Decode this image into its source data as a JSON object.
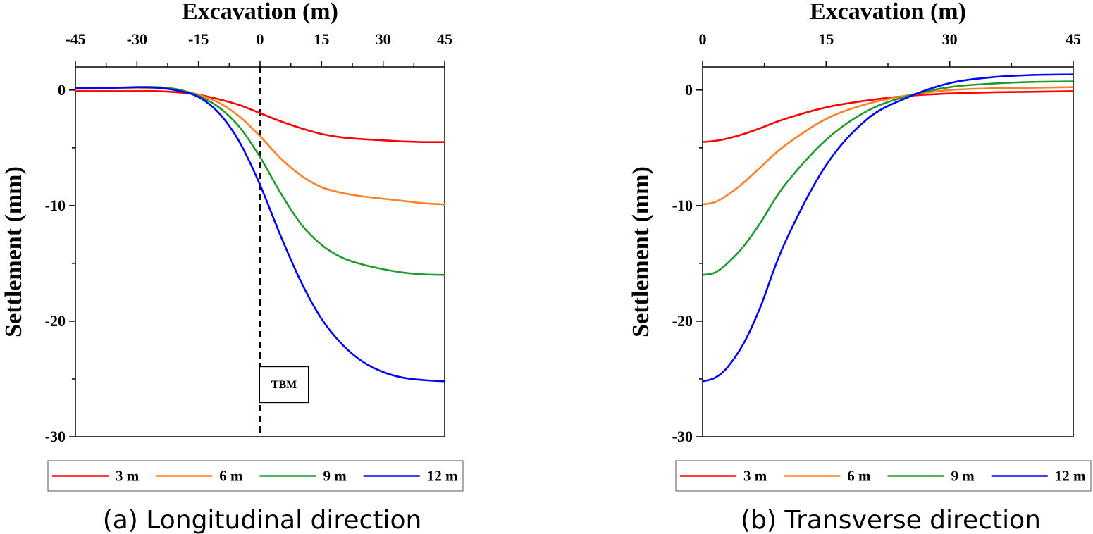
{
  "chart_data": [
    {
      "type": "line",
      "caption": "(a) Longitudinal direction",
      "xlabel": "Excavation (m)",
      "ylabel": "Settlement (mm)",
      "xlim": [
        -45,
        45
      ],
      "ylim": [
        -30,
        2
      ],
      "xticks": [
        -45,
        -30,
        -15,
        0,
        15,
        30,
        45
      ],
      "yticks": [
        0,
        -10,
        -20,
        -30
      ],
      "x_axis_position": "top",
      "grid": false,
      "legend_position": "bottom",
      "annotation": {
        "text": "TBM",
        "x": 0,
        "y": -25.5
      },
      "vline_x": 0,
      "series": [
        {
          "name": "3 m",
          "color": "#ff0000",
          "x": [
            -45,
            -35,
            -30,
            -25,
            -20,
            -15,
            -10,
            -5,
            0,
            5,
            10,
            15,
            20,
            25,
            30,
            35,
            40,
            45
          ],
          "y": [
            -0.1,
            -0.1,
            -0.1,
            -0.1,
            -0.2,
            -0.4,
            -0.8,
            -1.3,
            -2.0,
            -2.7,
            -3.3,
            -3.8,
            -4.1,
            -4.25,
            -4.35,
            -4.45,
            -4.5,
            -4.5
          ]
        },
        {
          "name": "6 m",
          "color": "#ff7f27",
          "x": [
            -45,
            -35,
            -30,
            -25,
            -20,
            -15,
            -10,
            -5,
            0,
            5,
            10,
            15,
            20,
            25,
            30,
            35,
            40,
            45
          ],
          "y": [
            0.1,
            0.15,
            0.2,
            0.15,
            0.0,
            -0.4,
            -1.1,
            -2.3,
            -4.0,
            -5.9,
            -7.4,
            -8.4,
            -8.9,
            -9.2,
            -9.4,
            -9.6,
            -9.8,
            -9.9
          ]
        },
        {
          "name": "9 m",
          "color": "#1e9a2e",
          "x": [
            -45,
            -35,
            -30,
            -25,
            -20,
            -15,
            -10,
            -5,
            0,
            5,
            10,
            15,
            20,
            25,
            30,
            35,
            40,
            45
          ],
          "y": [
            0.15,
            0.2,
            0.25,
            0.25,
            0.05,
            -0.5,
            -1.5,
            -3.2,
            -5.8,
            -8.9,
            -11.6,
            -13.4,
            -14.5,
            -15.1,
            -15.5,
            -15.8,
            -15.95,
            -16.0
          ]
        },
        {
          "name": "12 m",
          "color": "#0000ff",
          "x": [
            -45,
            -35,
            -30,
            -25,
            -20,
            -15,
            -10,
            -5,
            0,
            5,
            10,
            15,
            20,
            25,
            30,
            35,
            40,
            45
          ],
          "y": [
            0.15,
            0.2,
            0.25,
            0.2,
            -0.05,
            -0.6,
            -2.0,
            -4.5,
            -8.2,
            -12.6,
            -16.6,
            -19.8,
            -22.0,
            -23.5,
            -24.4,
            -24.9,
            -25.1,
            -25.2
          ]
        }
      ]
    },
    {
      "type": "line",
      "caption": "(b) Transverse direction",
      "xlabel": "Excavation (m)",
      "ylabel": "Settlement (mm)",
      "xlim": [
        0,
        45
      ],
      "ylim": [
        -30,
        2
      ],
      "xticks": [
        0,
        15,
        30,
        45
      ],
      "yticks": [
        0,
        -10,
        -20,
        -30
      ],
      "x_axis_position": "top",
      "grid": false,
      "legend_position": "bottom",
      "series": [
        {
          "name": "3 m",
          "color": "#ff0000",
          "x": [
            0,
            1.5,
            3,
            5,
            7,
            10,
            15,
            20,
            25,
            30,
            35,
            40,
            45
          ],
          "y": [
            -4.5,
            -4.4,
            -4.2,
            -3.8,
            -3.3,
            -2.5,
            -1.5,
            -0.9,
            -0.5,
            -0.3,
            -0.2,
            -0.15,
            -0.1
          ]
        },
        {
          "name": "6 m",
          "color": "#ff7f27",
          "x": [
            0,
            1.5,
            3,
            5,
            7,
            10,
            15,
            20,
            25,
            30,
            35,
            40,
            45
          ],
          "y": [
            -9.9,
            -9.7,
            -9.1,
            -8.0,
            -6.7,
            -4.8,
            -2.5,
            -1.2,
            -0.45,
            0.0,
            0.15,
            0.2,
            0.25
          ]
        },
        {
          "name": "9 m",
          "color": "#1e9a2e",
          "x": [
            0,
            1.5,
            3,
            5,
            7,
            10,
            15,
            20,
            25,
            30,
            35,
            40,
            45
          ],
          "y": [
            -16.0,
            -15.8,
            -15.0,
            -13.5,
            -11.5,
            -8.2,
            -4.3,
            -1.8,
            -0.5,
            0.25,
            0.55,
            0.7,
            0.75
          ]
        },
        {
          "name": "12 m",
          "color": "#0000ff",
          "x": [
            0,
            1.5,
            3,
            5,
            7,
            10,
            15,
            20,
            25,
            30,
            35,
            40,
            45
          ],
          "y": [
            -25.2,
            -24.9,
            -24.0,
            -21.9,
            -18.8,
            -13.2,
            -6.5,
            -2.5,
            -0.6,
            0.6,
            1.1,
            1.3,
            1.35
          ]
        }
      ]
    }
  ]
}
